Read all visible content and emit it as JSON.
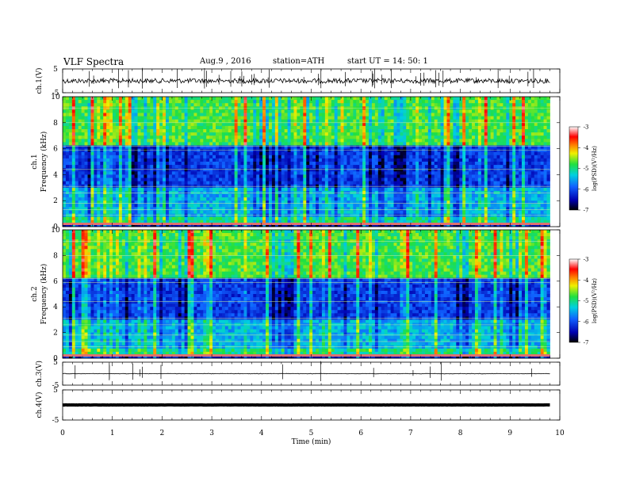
{
  "header": {
    "title": "VLF  Spectra",
    "date": "Aug.9  , 2016",
    "station": "station=ATH",
    "start": "start  UT  =    14: 50: 1"
  },
  "chart_data": [
    {
      "type": "line",
      "id": "ch1-waveform",
      "ylabel": "ch.1(V)",
      "ylim": [
        -5,
        5
      ],
      "yticks": [
        "5",
        "-5"
      ],
      "xlim": [
        0,
        10
      ],
      "note": "noisy voltage trace centered near 0 V with frequent impulsive spikes",
      "baseline_v": 0
    },
    {
      "type": "heatmap",
      "id": "ch1-spectrogram",
      "ylabel_top": "ch.1",
      "ylabel": "Frequency  (kHz)",
      "ylim": [
        0,
        10
      ],
      "yticks": [
        "10",
        "8",
        "6",
        "4",
        "2",
        "0"
      ],
      "xlim": [
        0,
        9.8
      ],
      "colorbar": {
        "label": "log(PSD)(V²/Hz)",
        "range": [
          -7,
          -3
        ],
        "ticks": [
          "-3",
          "-4",
          "-5",
          "-6",
          "-7"
        ]
      }
    },
    {
      "type": "heatmap",
      "id": "ch2-spectrogram",
      "ylabel_top": "ch.2",
      "ylabel": "Frequency  (kHz)",
      "ylim": [
        0,
        10
      ],
      "yticks": [
        "10",
        "8",
        "6",
        "4",
        "2",
        "0"
      ],
      "xlim": [
        0,
        9.8
      ],
      "colorbar": {
        "label": "log(PSD)(V²/Hz)",
        "range": [
          -7,
          -3
        ],
        "ticks": [
          "-3",
          "-4",
          "-5",
          "-6",
          "-7"
        ]
      }
    },
    {
      "type": "line",
      "id": "ch3-waveform",
      "ylabel": "ch.3(V)",
      "ylim": [
        -5,
        5
      ],
      "yticks": [
        "5",
        "-5"
      ],
      "note": "flat line near 0 V with a few small spikes",
      "baseline_v": 0
    },
    {
      "type": "line",
      "id": "ch4-waveform",
      "ylabel": "ch.4(V)",
      "ylim": [
        -5,
        5
      ],
      "yticks": [
        "5",
        "-5"
      ],
      "note": "thick flat line near 0 V",
      "baseline_v": 0
    }
  ],
  "xaxis": {
    "label": "Time  (min)",
    "ticks": [
      "0",
      "1",
      "2",
      "3",
      "4",
      "5",
      "6",
      "7",
      "8",
      "9",
      "10"
    ],
    "range": [
      0,
      10
    ]
  }
}
